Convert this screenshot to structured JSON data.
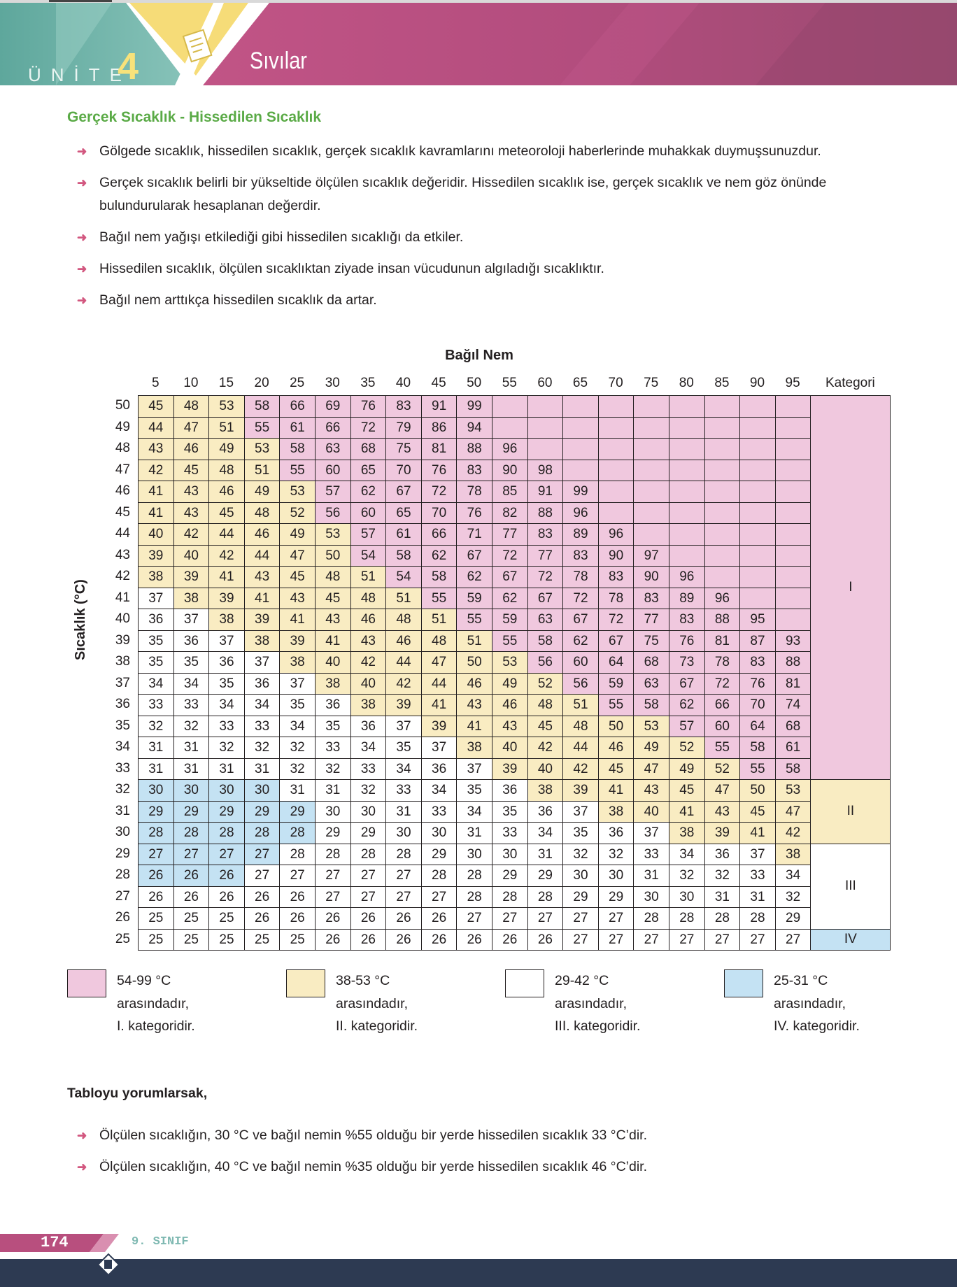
{
  "header": {
    "unit_label": "ÜNİTE",
    "unit_number": "4",
    "chapter_title": "Sıvılar"
  },
  "section": {
    "title": "Gerçek Sıcaklık - Hissedilen Sıcaklık",
    "bullets": [
      "Gölgede sıcaklık, hissedilen sıcaklık, gerçek sıcaklık kavramlarını meteoroloji haberlerinde muhakkak duymuşsunuzdur.",
      "Gerçek sıcaklık belirli bir yükseltide ölçülen sıcaklık değeridir. Hissedilen sıcaklık ise, gerçek sıcaklık ve nem göz önünde bulundurularak hesaplanan değerdir.",
      "Bağıl nem yağışı etkilediği gibi hissedilen sıcaklığı da etkiler.",
      "Hissedilen sıcaklık, ölçülen sıcaklıktan ziyade insan vücudunun algıladığı sıcaklıktır.",
      "Bağıl nem arttıkça hissedilen sıcaklık da artar."
    ]
  },
  "table": {
    "title": "Bağıl Nem",
    "row_axis_label": "Sıcaklık (°C)",
    "category_header": "Kategori",
    "columns": [
      "5",
      "10",
      "15",
      "20",
      "25",
      "30",
      "35",
      "40",
      "45",
      "50",
      "55",
      "60",
      "65",
      "70",
      "75",
      "80",
      "85",
      "90",
      "95"
    ],
    "rows": [
      {
        "t": "50",
        "v": [
          "45",
          "48",
          "53",
          "58",
          "66",
          "69",
          "76",
          "83",
          "91",
          "99",
          "",
          "",
          "",
          "",
          "",
          "",
          "",
          "",
          ""
        ]
      },
      {
        "t": "49",
        "v": [
          "44",
          "47",
          "51",
          "55",
          "61",
          "66",
          "72",
          "79",
          "86",
          "94",
          "",
          "",
          "",
          "",
          "",
          "",
          "",
          "",
          ""
        ]
      },
      {
        "t": "48",
        "v": [
          "43",
          "46",
          "49",
          "53",
          "58",
          "63",
          "68",
          "75",
          "81",
          "88",
          "96",
          "",
          "",
          "",
          "",
          "",
          "",
          "",
          ""
        ]
      },
      {
        "t": "47",
        "v": [
          "42",
          "45",
          "48",
          "51",
          "55",
          "60",
          "65",
          "70",
          "76",
          "83",
          "90",
          "98",
          "",
          "",
          "",
          "",
          "",
          "",
          ""
        ]
      },
      {
        "t": "46",
        "v": [
          "41",
          "43",
          "46",
          "49",
          "53",
          "57",
          "62",
          "67",
          "72",
          "78",
          "85",
          "91",
          "99",
          "",
          "",
          "",
          "",
          "",
          ""
        ]
      },
      {
        "t": "45",
        "v": [
          "41",
          "43",
          "45",
          "48",
          "52",
          "56",
          "60",
          "65",
          "70",
          "76",
          "82",
          "88",
          "96",
          "",
          "",
          "",
          "",
          "",
          ""
        ]
      },
      {
        "t": "44",
        "v": [
          "40",
          "42",
          "44",
          "46",
          "49",
          "53",
          "57",
          "61",
          "66",
          "71",
          "77",
          "83",
          "89",
          "96",
          "",
          "",
          "",
          "",
          ""
        ]
      },
      {
        "t": "43",
        "v": [
          "39",
          "40",
          "42",
          "44",
          "47",
          "50",
          "54",
          "58",
          "62",
          "67",
          "72",
          "77",
          "83",
          "90",
          "97",
          "",
          "",
          "",
          ""
        ]
      },
      {
        "t": "42",
        "v": [
          "38",
          "39",
          "41",
          "43",
          "45",
          "48",
          "51",
          "54",
          "58",
          "62",
          "67",
          "72",
          "78",
          "83",
          "90",
          "96",
          "",
          "",
          ""
        ]
      },
      {
        "t": "41",
        "v": [
          "37",
          "38",
          "39",
          "41",
          "43",
          "45",
          "48",
          "51",
          "55",
          "59",
          "62",
          "67",
          "72",
          "78",
          "83",
          "89",
          "96",
          "",
          ""
        ]
      },
      {
        "t": "40",
        "v": [
          "36",
          "37",
          "38",
          "39",
          "41",
          "43",
          "46",
          "48",
          "51",
          "55",
          "59",
          "63",
          "67",
          "72",
          "77",
          "83",
          "88",
          "95",
          ""
        ]
      },
      {
        "t": "39",
        "v": [
          "35",
          "36",
          "37",
          "38",
          "39",
          "41",
          "43",
          "46",
          "48",
          "51",
          "55",
          "58",
          "62",
          "67",
          "75",
          "76",
          "81",
          "87",
          "93"
        ]
      },
      {
        "t": "38",
        "v": [
          "35",
          "35",
          "36",
          "37",
          "38",
          "40",
          "42",
          "44",
          "47",
          "50",
          "53",
          "56",
          "60",
          "64",
          "68",
          "73",
          "78",
          "83",
          "88"
        ]
      },
      {
        "t": "37",
        "v": [
          "34",
          "34",
          "35",
          "36",
          "37",
          "38",
          "40",
          "42",
          "44",
          "46",
          "49",
          "52",
          "56",
          "59",
          "63",
          "67",
          "72",
          "76",
          "81"
        ]
      },
      {
        "t": "36",
        "v": [
          "33",
          "33",
          "34",
          "34",
          "35",
          "36",
          "38",
          "39",
          "41",
          "43",
          "46",
          "48",
          "51",
          "55",
          "58",
          "62",
          "66",
          "70",
          "74"
        ]
      },
      {
        "t": "35",
        "v": [
          "32",
          "32",
          "33",
          "33",
          "34",
          "35",
          "36",
          "37",
          "39",
          "41",
          "43",
          "45",
          "48",
          "50",
          "53",
          "57",
          "60",
          "64",
          "68"
        ]
      },
      {
        "t": "34",
        "v": [
          "31",
          "31",
          "32",
          "32",
          "32",
          "33",
          "34",
          "35",
          "37",
          "38",
          "40",
          "42",
          "44",
          "46",
          "49",
          "52",
          "55",
          "58",
          "61"
        ]
      },
      {
        "t": "33",
        "v": [
          "31",
          "31",
          "31",
          "31",
          "32",
          "32",
          "33",
          "34",
          "36",
          "37",
          "39",
          "40",
          "42",
          "45",
          "47",
          "49",
          "52",
          "55",
          "58"
        ]
      },
      {
        "t": "32",
        "v": [
          "30",
          "30",
          "30",
          "30",
          "31",
          "31",
          "32",
          "33",
          "34",
          "35",
          "36",
          "38",
          "39",
          "41",
          "43",
          "45",
          "47",
          "50",
          "53"
        ]
      },
      {
        "t": "31",
        "v": [
          "29",
          "29",
          "29",
          "29",
          "29",
          "30",
          "30",
          "31",
          "33",
          "34",
          "35",
          "36",
          "37",
          "38",
          "40",
          "41",
          "43",
          "45",
          "47"
        ]
      },
      {
        "t": "30",
        "v": [
          "28",
          "28",
          "28",
          "28",
          "28",
          "29",
          "29",
          "30",
          "30",
          "31",
          "33",
          "34",
          "35",
          "36",
          "37",
          "38",
          "39",
          "41",
          "42"
        ]
      },
      {
        "t": "29",
        "v": [
          "27",
          "27",
          "27",
          "27",
          "28",
          "28",
          "28",
          "28",
          "29",
          "30",
          "30",
          "31",
          "32",
          "32",
          "33",
          "34",
          "36",
          "37",
          "38"
        ]
      },
      {
        "t": "28",
        "v": [
          "26",
          "26",
          "26",
          "27",
          "27",
          "27",
          "27",
          "27",
          "28",
          "28",
          "29",
          "29",
          "30",
          "30",
          "31",
          "32",
          "32",
          "33",
          "34"
        ]
      },
      {
        "t": "27",
        "v": [
          "26",
          "26",
          "26",
          "26",
          "26",
          "27",
          "27",
          "27",
          "27",
          "28",
          "28",
          "28",
          "29",
          "29",
          "30",
          "30",
          "31",
          "31",
          "32"
        ]
      },
      {
        "t": "26",
        "v": [
          "25",
          "25",
          "25",
          "26",
          "26",
          "26",
          "26",
          "26",
          "26",
          "27",
          "27",
          "27",
          "27",
          "27",
          "28",
          "28",
          "28",
          "28",
          "29"
        ]
      },
      {
        "t": "25",
        "v": [
          "25",
          "25",
          "25",
          "25",
          "25",
          "26",
          "26",
          "26",
          "26",
          "26",
          "26",
          "26",
          "27",
          "27",
          "27",
          "27",
          "27",
          "27",
          "27"
        ]
      }
    ],
    "categories": [
      {
        "label": "I",
        "row_span": 18,
        "color": "#f0c8de"
      },
      {
        "label": "II",
        "row_span": 3,
        "color": "#f9ecc2"
      },
      {
        "label": "III",
        "row_span": 4,
        "color": "#ffffff"
      },
      {
        "label": "IV",
        "row_span": 1,
        "color": "#c4e2f3"
      }
    ]
  },
  "legend": [
    {
      "color": "#f0c8de",
      "range": "54-99 °C",
      "line2": "arasındadır,",
      "line3": "I. kategoridir."
    },
    {
      "color": "#f9ecc2",
      "range": "38-53 °C",
      "line2": "arasındadır,",
      "line3": "II. kategoridir."
    },
    {
      "color": "#ffffff",
      "range": "29-42 °C",
      "line2": "arasındadır,",
      "line3": "III. kategoridir."
    },
    {
      "color": "#c4e2f3",
      "range": "25-31 °C",
      "line2": "arasındadır,",
      "line3": "IV. kategoridir."
    }
  ],
  "interpretation": {
    "title": "Tabloyu yorumlarsak,",
    "bullets": [
      "Ölçülen sıcaklığın, 30 °C ve bağıl nemin %55 olduğu bir yerde hissedilen sıcaklık 33 °C’dir.",
      "Ölçülen sıcaklığın, 40 °C ve bağıl nemin %35 olduğu bir yerde hissedilen sıcaklık 46 °C’dir."
    ]
  },
  "footer": {
    "page_number": "174",
    "grade": "9. SINIF"
  },
  "colors": {
    "pink": "#f0c8de",
    "yellow": "#f9ecc2",
    "white": "#ffffff",
    "blue": "#c4e2f3",
    "heading_green": "#5aaa46",
    "arrow_pink": "#d2577f",
    "banner_teal": "#6fb5a9",
    "banner_magenta": "#b84f7e",
    "footer_navy": "#2d3a52"
  }
}
